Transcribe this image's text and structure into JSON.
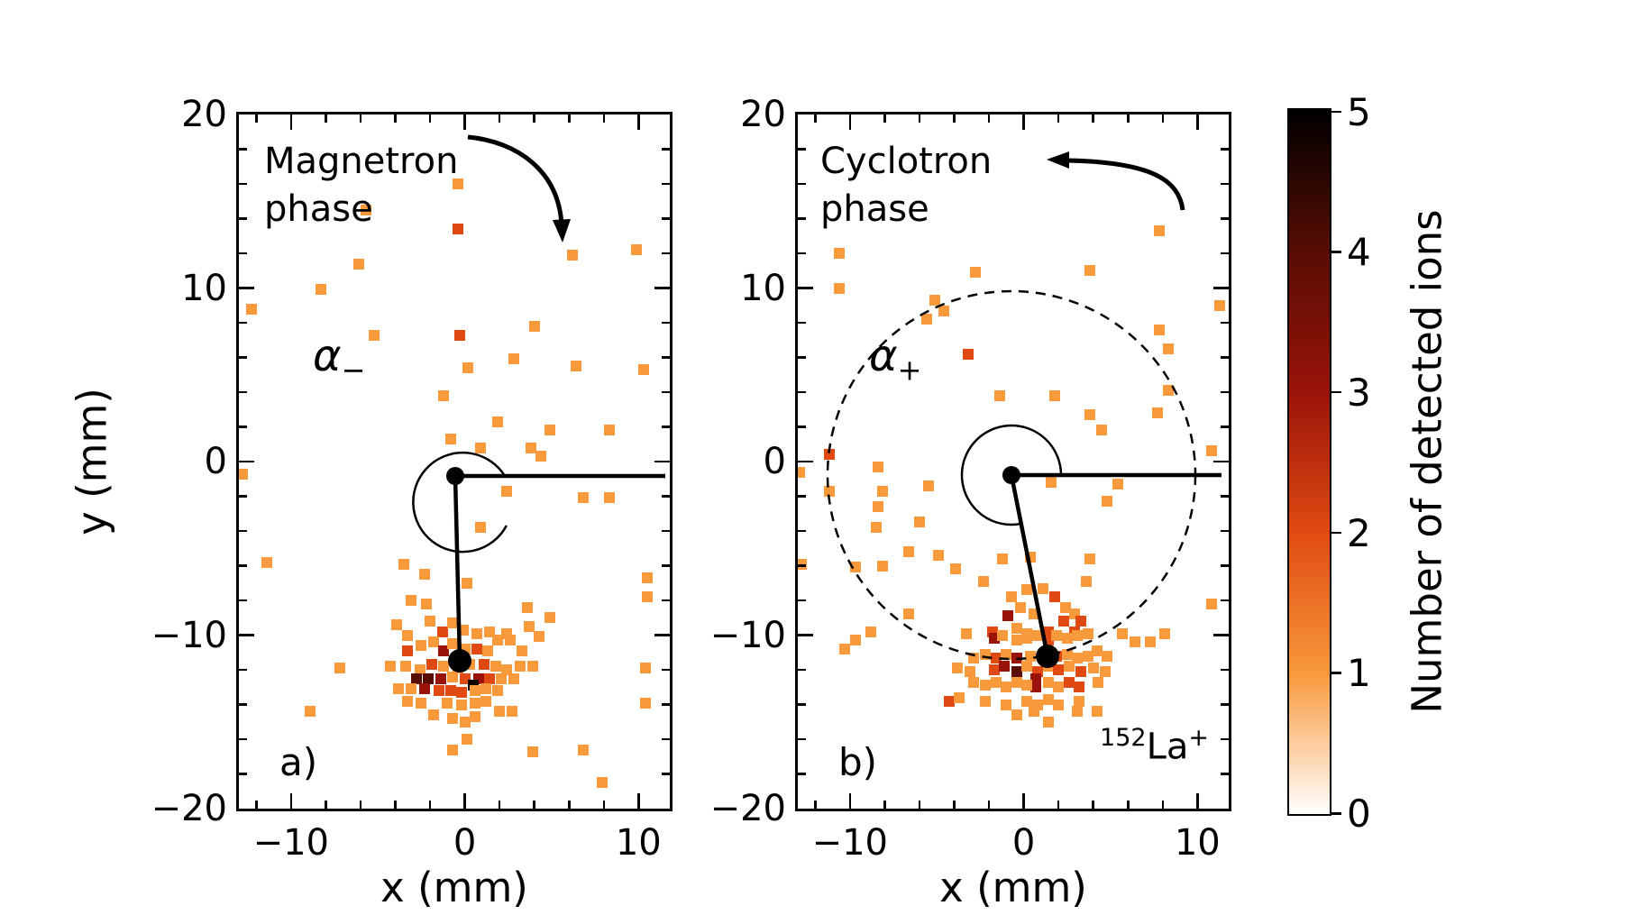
{
  "figure": {
    "ylabel": "y (mm)",
    "colorbar": {
      "label": "Number of detected ions",
      "tick_labels": [
        "0",
        "1",
        "2",
        "3",
        "4",
        "5"
      ],
      "min": 0,
      "max": 5,
      "stops": [
        "#ffffff",
        "#f8993b",
        "#e04a12",
        "#9a1309",
        "#570d04",
        "#000000"
      ]
    },
    "palette": {
      "1": "#f8993b",
      "2": "#e04a12",
      "3": "#9a1309",
      "4": "#570d04",
      "5": "#0d0200"
    }
  },
  "chart_data": [
    {
      "type": "heatmap",
      "panel": "a",
      "corner_label": "a)",
      "title_lines": [
        "Magnetron",
        "phase"
      ],
      "angle_label": {
        "symbol": "α",
        "sub": "−"
      },
      "rotation_arrow": "clockwise",
      "xlabel": "x (mm)",
      "x_ticks": [
        {
          "v": -10,
          "label": "−10"
        },
        {
          "v": 0,
          "label": "0"
        },
        {
          "v": 10,
          "label": "10"
        }
      ],
      "y_ticks": [
        {
          "v": 20,
          "label": "20"
        },
        {
          "v": 10,
          "label": "10"
        },
        {
          "v": 0,
          "label": "0"
        },
        {
          "v": -10,
          "label": "−10"
        },
        {
          "v": -20,
          "label": "−20"
        }
      ],
      "xlim": [
        -13.0,
        11.8
      ],
      "ylim": [
        -20,
        20
      ],
      "minor_tick_step_mm": 2,
      "bin_size_mm": 0.62,
      "trap_center_mm": [
        -0.6,
        -0.8
      ],
      "spot_center_mm": [
        -0.4,
        -11.5
      ],
      "reference_line": "horizontal from trap center to +x",
      "angle_arc_deg": 272,
      "points": [
        [
          -0.4,
          16.0,
          1
        ],
        [
          -5.7,
          14.5,
          1
        ],
        [
          -0.4,
          13.4,
          2
        ],
        [
          6.2,
          11.9,
          1
        ],
        [
          9.9,
          12.2,
          1
        ],
        [
          -6.1,
          11.4,
          1
        ],
        [
          -8.3,
          9.9,
          1
        ],
        [
          -12.3,
          8.8,
          1
        ],
        [
          -5.2,
          7.3,
          1
        ],
        [
          -0.3,
          7.3,
          2
        ],
        [
          4.0,
          7.8,
          1
        ],
        [
          0.2,
          5.4,
          1
        ],
        [
          2.8,
          5.9,
          1
        ],
        [
          6.4,
          5.5,
          1
        ],
        [
          10.3,
          5.3,
          1
        ],
        [
          -1.2,
          3.8,
          1
        ],
        [
          1.9,
          2.3,
          1
        ],
        [
          4.9,
          1.8,
          1
        ],
        [
          8.3,
          1.8,
          1
        ],
        [
          -0.8,
          1.3,
          1
        ],
        [
          0.9,
          0.8,
          1
        ],
        [
          3.8,
          0.8,
          1
        ],
        [
          4.4,
          0.3,
          1
        ],
        [
          -12.8,
          -0.7,
          1
        ],
        [
          2.4,
          -1.7,
          1
        ],
        [
          6.8,
          -2.1,
          1
        ],
        [
          8.3,
          -2.1,
          1
        ],
        [
          0.9,
          -3.8,
          1
        ],
        [
          -11.4,
          -5.8,
          1
        ],
        [
          -3.5,
          -5.9,
          1
        ],
        [
          -2.3,
          -6.5,
          1
        ],
        [
          0.1,
          -7.0,
          1
        ],
        [
          10.5,
          -6.7,
          1
        ],
        [
          10.5,
          -7.8,
          1
        ],
        [
          3.6,
          -8.4,
          1
        ],
        [
          4.9,
          -9.0,
          1
        ],
        [
          -3.1,
          -8.0,
          1
        ],
        [
          -2.2,
          -8.2,
          1
        ],
        [
          -7.2,
          -11.9,
          1
        ],
        [
          -8.9,
          -14.4,
          1
        ],
        [
          10.4,
          -11.9,
          1
        ],
        [
          10.4,
          -13.9,
          1
        ],
        [
          2.7,
          -14.4,
          1
        ],
        [
          3.9,
          -16.7,
          1
        ],
        [
          6.8,
          -16.6,
          1
        ],
        [
          7.9,
          -18.5,
          1
        ],
        [
          0.1,
          -16.0,
          1
        ],
        [
          -0.7,
          -16.6,
          1
        ],
        [
          -3.9,
          -9.4,
          1
        ],
        [
          -2.0,
          -9.2,
          1
        ],
        [
          -1.3,
          -9.8,
          2
        ],
        [
          -0.7,
          -9.3,
          1
        ],
        [
          -0.1,
          -9.7,
          1
        ],
        [
          0.7,
          -9.9,
          1
        ],
        [
          1.4,
          -9.8,
          1
        ],
        [
          2.4,
          -9.9,
          1
        ],
        [
          3.7,
          -9.5,
          1
        ],
        [
          4.3,
          -10.1,
          1
        ],
        [
          -3.3,
          -10.0,
          1
        ],
        [
          -3.3,
          -10.9,
          2
        ],
        [
          -2.5,
          -10.6,
          1
        ],
        [
          -1.8,
          -10.4,
          1
        ],
        [
          -1.2,
          -10.9,
          3
        ],
        [
          -0.7,
          -10.5,
          1
        ],
        [
          0.0,
          -10.8,
          1
        ],
        [
          0.7,
          -10.8,
          2
        ],
        [
          1.3,
          -10.9,
          1
        ],
        [
          1.9,
          -10.3,
          1
        ],
        [
          2.6,
          -10.3,
          1
        ],
        [
          3.3,
          -10.9,
          1
        ],
        [
          -4.3,
          -11.8,
          1
        ],
        [
          -3.4,
          -11.8,
          1
        ],
        [
          -2.6,
          -12.0,
          1
        ],
        [
          -1.9,
          -11.7,
          2
        ],
        [
          -1.2,
          -11.8,
          1
        ],
        [
          -0.4,
          -11.9,
          1
        ],
        [
          0.3,
          -11.7,
          1
        ],
        [
          1.1,
          -11.7,
          2
        ],
        [
          1.8,
          -11.8,
          1
        ],
        [
          2.4,
          -12.0,
          1
        ],
        [
          3.2,
          -11.8,
          1
        ],
        [
          3.9,
          -11.8,
          1
        ],
        [
          -2.8,
          -12.5,
          4
        ],
        [
          -2.1,
          -12.5,
          4
        ],
        [
          -1.4,
          -12.5,
          3
        ],
        [
          -0.7,
          -12.4,
          1
        ],
        [
          0.0,
          -12.5,
          2
        ],
        [
          0.8,
          -12.5,
          3
        ],
        [
          1.4,
          -12.5,
          2
        ],
        [
          2.1,
          -12.5,
          1
        ],
        [
          2.8,
          -12.5,
          1
        ],
        [
          0.5,
          -12.9,
          5
        ],
        [
          -0.2,
          -13.3,
          2
        ],
        [
          -3.8,
          -13.1,
          1
        ],
        [
          -3.1,
          -13.1,
          1
        ],
        [
          -2.3,
          -13.1,
          3
        ],
        [
          -1.5,
          -13.2,
          2
        ],
        [
          -0.8,
          -13.2,
          2
        ],
        [
          0.6,
          -13.2,
          1
        ],
        [
          1.2,
          -13.1,
          1
        ],
        [
          1.9,
          -13.2,
          1
        ],
        [
          -3.3,
          -13.8,
          1
        ],
        [
          -2.5,
          -13.9,
          1
        ],
        [
          -1.0,
          -13.9,
          1
        ],
        [
          -0.2,
          -14.0,
          1
        ],
        [
          0.6,
          -13.9,
          1
        ],
        [
          1.2,
          -13.8,
          1
        ],
        [
          2.0,
          -14.4,
          1
        ],
        [
          -1.8,
          -14.6,
          1
        ],
        [
          -0.7,
          -14.8,
          1
        ],
        [
          0.0,
          -15.0,
          1
        ],
        [
          0.6,
          -14.7,
          1
        ]
      ]
    },
    {
      "type": "heatmap",
      "panel": "b",
      "corner_label": "b)",
      "title_lines": [
        "Cyclotron",
        "phase"
      ],
      "angle_label": {
        "symbol": "α",
        "sub": "+"
      },
      "rotation_arrow": "counterclockwise",
      "ion_label": {
        "mass": "152",
        "element": "La",
        "charge": "+"
      },
      "xlabel": "x (mm)",
      "x_ticks": [
        {
          "v": -10,
          "label": "−10"
        },
        {
          "v": 0,
          "label": "0"
        },
        {
          "v": 10,
          "label": "10"
        }
      ],
      "y_ticks": [
        {
          "v": 20,
          "label": "20"
        },
        {
          "v": 10,
          "label": "10"
        },
        {
          "v": 0,
          "label": "0"
        },
        {
          "v": -10,
          "label": "−10"
        },
        {
          "v": -20,
          "label": "−20"
        }
      ],
      "xlim": [
        -13.0,
        11.8
      ],
      "ylim": [
        -20,
        20
      ],
      "minor_tick_step_mm": 2,
      "bin_size_mm": 0.62,
      "trap_center_mm": [
        -0.7,
        -0.8
      ],
      "spot_center_mm": [
        1.3,
        -11.2
      ],
      "dashed_circle_radius_mm": 10.6,
      "reference_line": "horizontal from trap center to +x",
      "angle_arc_deg": 281,
      "points": [
        [
          -10.6,
          12.0,
          1
        ],
        [
          -10.6,
          10.0,
          1
        ],
        [
          -2.8,
          10.9,
          1
        ],
        [
          3.8,
          11.0,
          1
        ],
        [
          7.8,
          13.3,
          1
        ],
        [
          11.3,
          9.0,
          1
        ],
        [
          -5.1,
          9.3,
          1
        ],
        [
          -4.6,
          8.7,
          1
        ],
        [
          -5.6,
          8.2,
          1
        ],
        [
          -3.2,
          6.2,
          2
        ],
        [
          -1.4,
          3.8,
          1
        ],
        [
          1.8,
          3.8,
          1
        ],
        [
          7.8,
          7.6,
          1
        ],
        [
          8.3,
          6.5,
          1
        ],
        [
          8.3,
          4.1,
          1
        ],
        [
          3.8,
          2.7,
          1
        ],
        [
          7.7,
          2.8,
          1
        ],
        [
          4.5,
          1.8,
          1
        ],
        [
          10.8,
          0.6,
          1
        ],
        [
          -11.2,
          0.4,
          2
        ],
        [
          -12.9,
          -0.6,
          1
        ],
        [
          -11.2,
          -1.7,
          1
        ],
        [
          -8.4,
          -0.3,
          1
        ],
        [
          -8.1,
          -1.7,
          1
        ],
        [
          -8.4,
          -2.6,
          1
        ],
        [
          -8.5,
          -3.8,
          1
        ],
        [
          -6.0,
          -3.5,
          1
        ],
        [
          -5.5,
          -1.4,
          1
        ],
        [
          1.6,
          -1.2,
          1
        ],
        [
          5.4,
          -1.3,
          1
        ],
        [
          4.8,
          -2.3,
          1
        ],
        [
          10.8,
          -8.2,
          1
        ],
        [
          -6.6,
          -5.2,
          1
        ],
        [
          -8.1,
          -6.0,
          1
        ],
        [
          -9.7,
          -6.1,
          1
        ],
        [
          -12.8,
          -5.9,
          1
        ],
        [
          -4.9,
          -5.4,
          1
        ],
        [
          -3.9,
          -6.2,
          1
        ],
        [
          0.4,
          -5.5,
          1
        ],
        [
          3.8,
          -5.6,
          1
        ],
        [
          -6.6,
          -8.8,
          1
        ],
        [
          -8.8,
          -9.8,
          1
        ],
        [
          -9.7,
          -10.3,
          1
        ],
        [
          -10.3,
          -10.8,
          1
        ],
        [
          7.3,
          -10.4,
          1
        ],
        [
          8.1,
          -9.9,
          1
        ],
        [
          -1.2,
          -5.6,
          1
        ],
        [
          -2.3,
          -6.9,
          1
        ],
        [
          3.6,
          -6.9,
          1
        ],
        [
          0.2,
          -7.4,
          1
        ],
        [
          1.1,
          -7.3,
          1
        ],
        [
          -0.7,
          -7.8,
          1
        ],
        [
          1.8,
          -7.8,
          2
        ],
        [
          -0.2,
          -8.4,
          1
        ],
        [
          0.6,
          -8.8,
          1
        ],
        [
          2.4,
          -8.4,
          1
        ],
        [
          2.9,
          -8.8,
          1
        ],
        [
          2.3,
          -9.2,
          2
        ],
        [
          3.3,
          -9.2,
          2
        ],
        [
          -0.9,
          -8.9,
          3
        ],
        [
          -3.3,
          -9.9,
          1
        ],
        [
          -1.8,
          -9.8,
          2
        ],
        [
          -0.4,
          -9.6,
          1
        ],
        [
          0.2,
          -9.9,
          1
        ],
        [
          1.4,
          -9.8,
          2
        ],
        [
          2.9,
          -9.8,
          2
        ],
        [
          3.7,
          -9.9,
          1
        ],
        [
          -1.7,
          -10.2,
          3
        ],
        [
          -1.2,
          -10.0,
          1
        ],
        [
          -0.4,
          -10.3,
          1
        ],
        [
          0.2,
          -10.2,
          1
        ],
        [
          0.8,
          -10.0,
          1
        ],
        [
          1.4,
          -10.3,
          2
        ],
        [
          1.9,
          -10.0,
          1
        ],
        [
          2.5,
          -10.2,
          1
        ],
        [
          3.1,
          -10.0,
          1
        ],
        [
          4.2,
          -10.9,
          1
        ],
        [
          4.8,
          -11.2,
          1
        ],
        [
          5.7,
          -9.9,
          1
        ],
        [
          6.4,
          -10.4,
          1
        ],
        [
          -2.9,
          -11.3,
          1
        ],
        [
          -2.2,
          -11.1,
          1
        ],
        [
          -1.6,
          -11.3,
          2
        ],
        [
          -1.0,
          -11.1,
          1
        ],
        [
          -0.4,
          -11.3,
          3
        ],
        [
          0.4,
          -11.2,
          1
        ],
        [
          1.9,
          -11.2,
          2
        ],
        [
          2.5,
          -11.1,
          1
        ],
        [
          3.1,
          -11.3,
          1
        ],
        [
          3.7,
          -11.2,
          1
        ],
        [
          -3.8,
          -11.9,
          1
        ],
        [
          -3.1,
          -12.1,
          1
        ],
        [
          -1.7,
          -12.0,
          2
        ],
        [
          -1.1,
          -11.8,
          3
        ],
        [
          -0.4,
          -12.1,
          4
        ],
        [
          0.2,
          -11.8,
          1
        ],
        [
          0.8,
          -12.1,
          2
        ],
        [
          1.4,
          -11.8,
          1
        ],
        [
          2.0,
          -12.0,
          2
        ],
        [
          2.6,
          -11.8,
          1
        ],
        [
          3.3,
          -12.1,
          2
        ],
        [
          4.0,
          -11.9,
          1
        ],
        [
          4.7,
          -12.1,
          1
        ],
        [
          0.7,
          -12.5,
          3
        ],
        [
          0.7,
          -13.0,
          3
        ],
        [
          -2.9,
          -12.7,
          1
        ],
        [
          -2.2,
          -12.9,
          1
        ],
        [
          -1.6,
          -12.7,
          1
        ],
        [
          -1.0,
          -13.0,
          1
        ],
        [
          -0.4,
          -12.7,
          1
        ],
        [
          0.2,
          -12.9,
          1
        ],
        [
          1.4,
          -12.7,
          1
        ],
        [
          2.0,
          -13.0,
          1
        ],
        [
          2.6,
          -12.7,
          2
        ],
        [
          3.2,
          -13.0,
          2
        ],
        [
          4.3,
          -12.7,
          1
        ],
        [
          -4.3,
          -13.8,
          2
        ],
        [
          -3.7,
          -13.6,
          1
        ],
        [
          -2.2,
          -13.8,
          1
        ],
        [
          -1.0,
          -14.0,
          1
        ],
        [
          0.2,
          -13.8,
          1
        ],
        [
          0.8,
          -14.0,
          1
        ],
        [
          1.4,
          -13.7,
          1
        ],
        [
          2.0,
          -14.0,
          1
        ],
        [
          3.2,
          -13.8,
          1
        ],
        [
          0.6,
          -14.4,
          1
        ],
        [
          1.4,
          -15.0,
          1
        ],
        [
          3.1,
          -14.4,
          1
        ],
        [
          -0.4,
          -14.6,
          1
        ],
        [
          4.2,
          -14.4,
          1
        ]
      ]
    }
  ]
}
